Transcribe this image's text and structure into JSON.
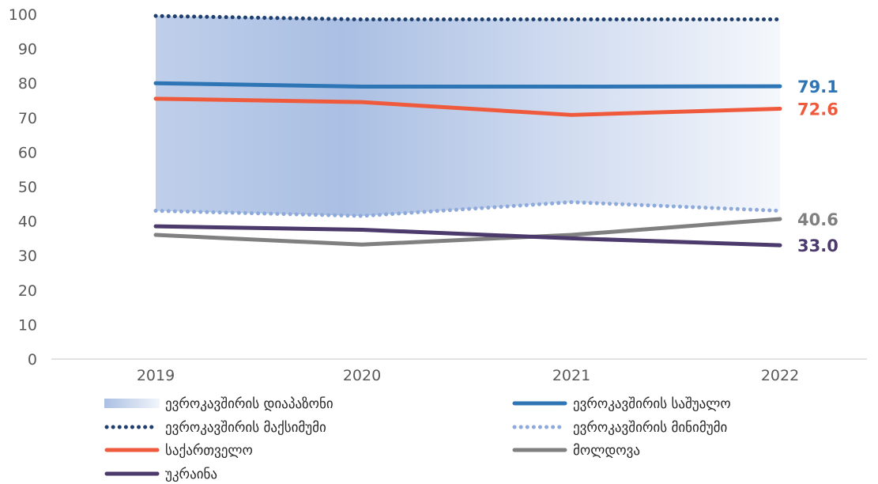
{
  "chart_data": {
    "type": "line",
    "categories": [
      "2019",
      "2020",
      "2021",
      "2022"
    ],
    "ylim": [
      0,
      100
    ],
    "yticks": [
      0,
      10,
      20,
      30,
      40,
      50,
      60,
      70,
      80,
      90,
      100
    ],
    "grid": false,
    "legend_position": "bottom",
    "band": {
      "name": "ევროკავშირის დიაპაზონი",
      "upper_series": "ევროკავშირის მაქსიმუმი",
      "lower_series": "ევროკავშირის მინიმუმი",
      "color": "#aabfe3"
    },
    "series": [
      {
        "name": "ევროკავშირის საშუალო",
        "values": [
          80.0,
          79.0,
          79.0,
          79.1
        ],
        "color": "#2e75b6",
        "style": "solid",
        "end_label": "79.1"
      },
      {
        "name": "ევროკავშირის მაქსიმუმი",
        "values": [
          99.5,
          98.5,
          98.5,
          98.5
        ],
        "color": "#1f3f6e",
        "style": "dotted"
      },
      {
        "name": "ევროკავშირის მინიმუმი",
        "values": [
          43.0,
          41.5,
          45.5,
          43.0
        ],
        "color": "#8eaadb",
        "style": "dotted"
      },
      {
        "name": "საქართველო",
        "values": [
          75.5,
          74.5,
          70.8,
          72.6
        ],
        "color": "#f05a3c",
        "style": "solid",
        "end_label": "72.6"
      },
      {
        "name": "მოლდოვა",
        "values": [
          36.0,
          33.2,
          36.0,
          40.6
        ],
        "color": "#808080",
        "style": "solid",
        "end_label": "40.6"
      },
      {
        "name": "უკრაინა",
        "values": [
          38.5,
          37.5,
          35.0,
          33.0
        ],
        "color": "#4b3a6b",
        "style": "solid",
        "end_label": "33.0"
      }
    ],
    "legend": [
      {
        "name": "ევროკავშირის დიაპაზონი",
        "kind": "band"
      },
      {
        "name": "ევროკავშირის საშუალო",
        "kind": "series"
      },
      {
        "name": "ევროკავშირის მაქსიმუმი",
        "kind": "series"
      },
      {
        "name": "ევროკავშირის მინიმუმი",
        "kind": "series"
      },
      {
        "name": "საქართველო",
        "kind": "series"
      },
      {
        "name": "მოლდოვა",
        "kind": "series"
      },
      {
        "name": "უკრაინა",
        "kind": "series"
      }
    ]
  }
}
